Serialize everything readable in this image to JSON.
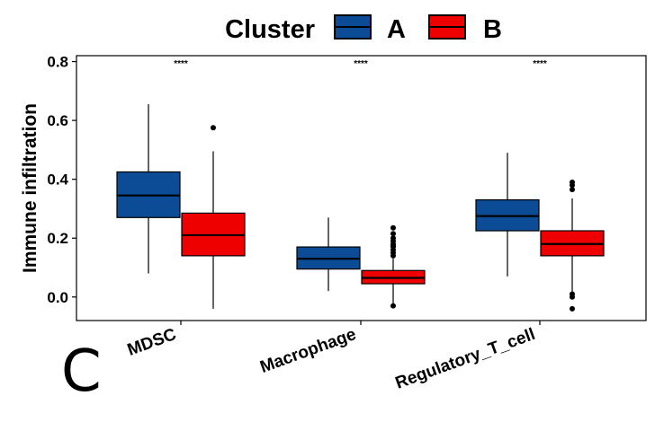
{
  "panel_label": "C",
  "chart_data": {
    "type": "box",
    "title": "",
    "xlabel": "",
    "ylabel": "Immune infiltration",
    "ylim": [
      -0.08,
      0.82
    ],
    "yticks": [
      0.0,
      0.2,
      0.4,
      0.6,
      0.8
    ],
    "ytick_labels": [
      "0.0",
      "0.2",
      "0.4",
      "0.6",
      "0.8"
    ],
    "grid": false,
    "legend": {
      "title": "Cluster",
      "position": "top",
      "entries": [
        {
          "name": "A",
          "color": "#0C4C96"
        },
        {
          "name": "B",
          "color": "#EE0000"
        }
      ]
    },
    "categories": [
      "MDSC",
      "Macrophage",
      "Regulatory_T_cell"
    ],
    "significance": [
      "****",
      "****",
      "****"
    ],
    "series": [
      {
        "name": "A",
        "color": "#0C4C96",
        "boxes": [
          {
            "min": 0.08,
            "q1": 0.27,
            "median": 0.345,
            "q3": 0.425,
            "max": 0.655,
            "outliers": []
          },
          {
            "min": 0.02,
            "q1": 0.095,
            "median": 0.13,
            "q3": 0.17,
            "max": 0.27,
            "outliers": []
          },
          {
            "min": 0.07,
            "q1": 0.225,
            "median": 0.275,
            "q3": 0.33,
            "max": 0.49,
            "outliers": []
          }
        ]
      },
      {
        "name": "B",
        "color": "#EE0000",
        "boxes": [
          {
            "min": -0.04,
            "q1": 0.14,
            "median": 0.21,
            "q3": 0.285,
            "max": 0.495,
            "outliers": [
              0.575
            ]
          },
          {
            "min": -0.03,
            "q1": 0.045,
            "median": 0.065,
            "q3": 0.09,
            "max": 0.13,
            "outliers": [
              0.14,
              0.15,
              0.16,
              0.17,
              0.175,
              0.18,
              0.19,
              0.2,
              0.215,
              0.235,
              -0.03
            ]
          },
          {
            "min": 0.015,
            "q1": 0.14,
            "median": 0.18,
            "q3": 0.225,
            "max": 0.335,
            "outliers": [
              0.365,
              0.38,
              0.39,
              0.01,
              0.0,
              -0.04
            ]
          }
        ]
      }
    ]
  }
}
